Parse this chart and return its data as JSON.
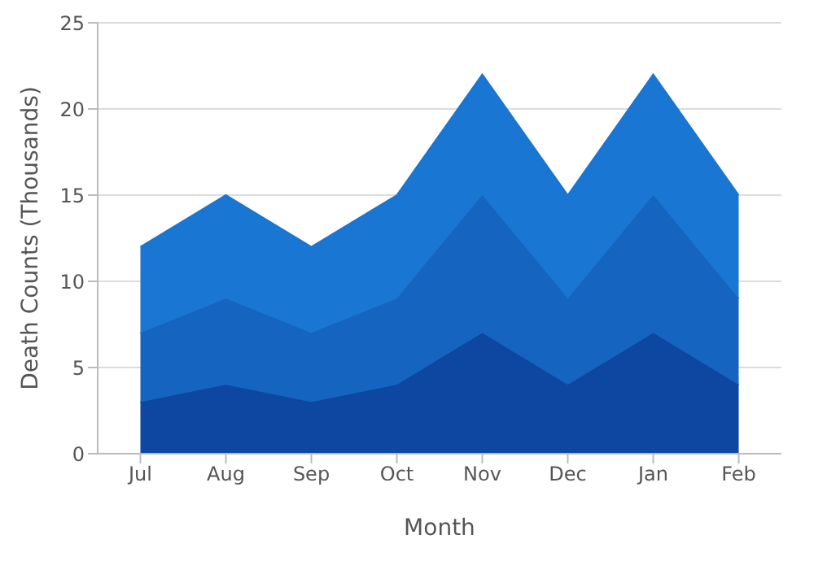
{
  "chart_data": {
    "type": "area",
    "stacked": true,
    "xlabel": "Month",
    "ylabel": "Death Counts (Thousands)",
    "categories": [
      "Jul",
      "Aug",
      "Sep",
      "Oct",
      "Nov",
      "Dec",
      "Jan",
      "Feb"
    ],
    "series": [
      {
        "color": "#0d47a1",
        "values": [
          3,
          4,
          3,
          4,
          7,
          4,
          7,
          4
        ]
      },
      {
        "color": "#1565c0",
        "values": [
          4,
          5,
          4,
          5,
          8,
          5,
          8,
          5
        ]
      },
      {
        "color": "#1976d2",
        "values": [
          5,
          6,
          5,
          6,
          7,
          6,
          7,
          6
        ]
      }
    ],
    "ylim": [
      0,
      25
    ],
    "yticks": [
      0,
      5,
      10,
      15,
      20,
      25
    ],
    "grid": "y",
    "legend": false
  }
}
